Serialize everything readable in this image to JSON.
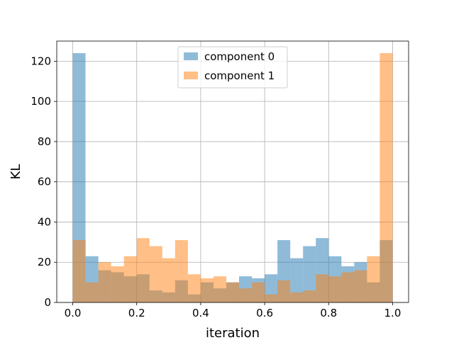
{
  "chart_data": {
    "type": "bar",
    "subtype": "overlapping-histogram",
    "xlabel": "iteration",
    "ylabel": "KL",
    "xlim": [
      -0.05,
      1.05
    ],
    "ylim": [
      0,
      130
    ],
    "grid": true,
    "legend_position": "top-center",
    "bin_edges": [
      0.0,
      0.04,
      0.08,
      0.12,
      0.16,
      0.2,
      0.24,
      0.28,
      0.32,
      0.36,
      0.4,
      0.44,
      0.48,
      0.52,
      0.56,
      0.6,
      0.64,
      0.68,
      0.72,
      0.76,
      0.8,
      0.84,
      0.88,
      0.92,
      0.96,
      1.0
    ],
    "x_ticks": [
      {
        "value": 0.0,
        "label": "0.0"
      },
      {
        "value": 0.2,
        "label": "0.2"
      },
      {
        "value": 0.4,
        "label": "0.4"
      },
      {
        "value": 0.6,
        "label": "0.6"
      },
      {
        "value": 0.8,
        "label": "0.8"
      },
      {
        "value": 1.0,
        "label": "1.0"
      }
    ],
    "y_ticks": [
      {
        "value": 0,
        "label": "0"
      },
      {
        "value": 20,
        "label": "20"
      },
      {
        "value": 40,
        "label": "40"
      },
      {
        "value": 60,
        "label": "60"
      },
      {
        "value": 80,
        "label": "80"
      },
      {
        "value": 100,
        "label": "100"
      },
      {
        "value": 120,
        "label": "120"
      }
    ],
    "series": [
      {
        "name": "component 0",
        "color": "#1f77b4",
        "alpha": 0.5,
        "values": [
          124,
          23,
          16,
          15,
          13,
          14,
          6,
          5,
          11,
          4,
          10,
          7,
          10,
          13,
          12,
          14,
          31,
          22,
          28,
          32,
          23,
          18,
          20,
          10,
          31
        ]
      },
      {
        "name": "component 1",
        "color": "#ff7f0e",
        "alpha": 0.5,
        "values": [
          31,
          10,
          20,
          18,
          23,
          32,
          28,
          22,
          31,
          14,
          12,
          13,
          10,
          7,
          10,
          4,
          11,
          5,
          6,
          14,
          13,
          15,
          16,
          23,
          124
        ]
      }
    ]
  }
}
